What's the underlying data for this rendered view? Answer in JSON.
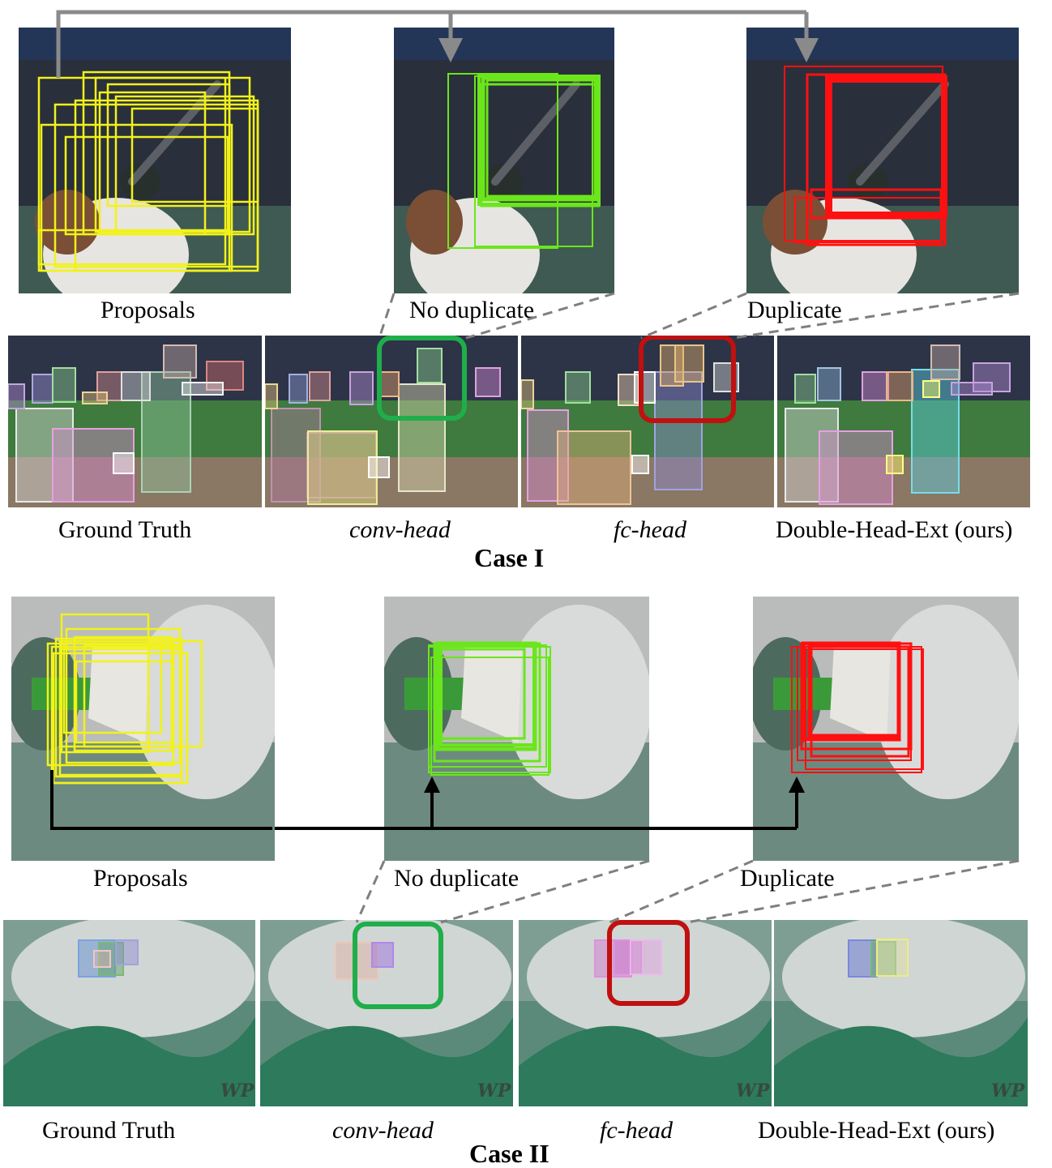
{
  "case1": {
    "title": "Case I",
    "top_labels": [
      "Proposals",
      "No duplicate",
      "Duplicate"
    ],
    "bottom_labels": [
      "Ground Truth",
      "conv-head",
      "fc-head",
      "Double-Head-Ext (ours)"
    ]
  },
  "case2": {
    "title": "Case II",
    "top_labels": [
      "Proposals",
      "No duplicate",
      "Duplicate"
    ],
    "bottom_labels": [
      "Ground Truth",
      "conv-head",
      "fc-head",
      "Double-Head-Ext (ours)"
    ],
    "watermark": "WP"
  },
  "colors": {
    "proposals": "#f2f21a",
    "no_duplicate": "#6be61a",
    "duplicate": "#ff1010",
    "highlight_good": "#1fae4a",
    "highlight_bad": "#c01010",
    "gray_arrow": "#8a8a8a",
    "black_arrow": "#000000"
  }
}
